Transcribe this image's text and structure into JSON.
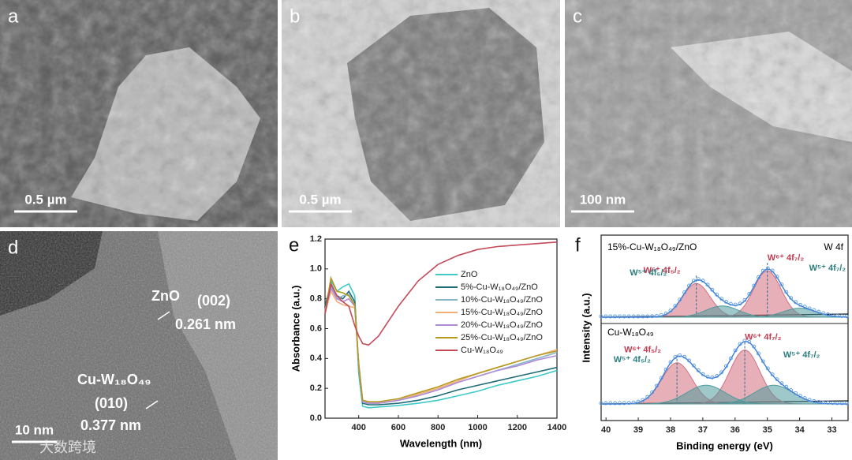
{
  "panels": [
    {
      "label": "a",
      "scale_bar": "0.5 µm"
    },
    {
      "label": "b",
      "scale_bar": "0.5 µm"
    },
    {
      "label": "c",
      "scale_bar": "100 nm"
    },
    {
      "label": "d",
      "scale_bar": "10 nm",
      "annotations": [
        "ZnO",
        "(002)",
        "0.261 nm",
        "Cu-W₁₈O₄₉",
        "(010)",
        "0.377 nm"
      ],
      "watermark": "大数跨境"
    }
  ],
  "chart_data": [
    {
      "type": "line",
      "label": "e",
      "x_label": "Wavelength (nm)",
      "y_label": "Absorbance (a.u.)",
      "x": [
        230,
        260,
        290,
        320,
        350,
        380,
        400,
        420,
        450,
        500,
        600,
        700,
        800,
        900,
        1000,
        1100,
        1200,
        1300,
        1400
      ],
      "xlim": [
        230,
        1400
      ],
      "xticks": [
        400,
        600,
        800,
        1000,
        1200,
        1400
      ],
      "ylim": [
        0,
        1.2
      ],
      "yticks": [
        {
          "value": 0,
          "label": "0.0"
        },
        0.2,
        0.4,
        0.6,
        0.8,
        {
          "value": 1,
          "label": "1.0"
        },
        1.2
      ],
      "series": [
        {
          "name": "ZnO",
          "color": "#3fc9c9",
          "values": [
            0.72,
            0.92,
            0.85,
            0.88,
            0.9,
            0.82,
            0.3,
            0.08,
            0.07,
            0.075,
            0.085,
            0.1,
            0.12,
            0.15,
            0.18,
            0.22,
            0.25,
            0.28,
            0.32
          ]
        },
        {
          "name": "5%-Cu-W₁₈O₄₉/ZnO",
          "color": "#1f6b77",
          "values": [
            0.75,
            0.9,
            0.82,
            0.8,
            0.85,
            0.78,
            0.35,
            0.1,
            0.09,
            0.09,
            0.1,
            0.12,
            0.15,
            0.19,
            0.22,
            0.25,
            0.28,
            0.31,
            0.34
          ]
        },
        {
          "name": "10%-Cu-W₁₈O₄₉/ZnO",
          "color": "#8ab6cc",
          "values": [
            0.7,
            0.88,
            0.8,
            0.82,
            0.83,
            0.76,
            0.35,
            0.11,
            0.1,
            0.1,
            0.12,
            0.15,
            0.19,
            0.24,
            0.28,
            0.32,
            0.36,
            0.4,
            0.44
          ]
        },
        {
          "name": "15%-Cu-W₁₈O₄₉/ZnO",
          "color": "#f0b07a",
          "values": [
            0.7,
            0.85,
            0.78,
            0.76,
            0.75,
            0.74,
            0.36,
            0.12,
            0.1,
            0.1,
            0.12,
            0.16,
            0.2,
            0.25,
            0.3,
            0.34,
            0.38,
            0.42,
            0.46
          ]
        },
        {
          "name": "20%-Cu-W₁₈O₄₉/ZnO",
          "color": "#b08bd6",
          "values": [
            0.72,
            0.87,
            0.8,
            0.78,
            0.8,
            0.75,
            0.36,
            0.11,
            0.1,
            0.1,
            0.12,
            0.15,
            0.19,
            0.24,
            0.28,
            0.32,
            0.35,
            0.39,
            0.42
          ]
        },
        {
          "name": "25%-Cu-W₁₈O₄₉/ZnO",
          "color": "#b59a1f",
          "values": [
            0.7,
            0.94,
            0.85,
            0.84,
            0.82,
            0.76,
            0.37,
            0.12,
            0.11,
            0.11,
            0.13,
            0.17,
            0.21,
            0.26,
            0.3,
            0.34,
            0.38,
            0.42,
            0.45
          ]
        },
        {
          "name": "Cu-W₁₈O₄₉",
          "color": "#c44a5a",
          "values": [
            0.7,
            0.9,
            0.82,
            0.78,
            0.75,
            0.62,
            0.55,
            0.5,
            0.49,
            0.55,
            0.75,
            0.92,
            1.03,
            1.09,
            1.13,
            1.15,
            1.16,
            1.17,
            1.18
          ]
        }
      ]
    },
    {
      "type": "xps",
      "label": "f",
      "x_label": "Binding energy (eV)",
      "y_label": "Intensity (a.u.)",
      "region": "W 4f",
      "xlim": [
        40.15,
        32.5
      ],
      "xticks": [
        40,
        39,
        38,
        37,
        36,
        35,
        34,
        33
      ],
      "spectra": [
        {
          "name": "15%-Cu-W₁₈O₄₉/ZnO",
          "peaks": [
            {
              "name": "W⁶⁺ 4f₅/₂",
              "center": 37.2,
              "height": 45,
              "width": 1.0,
              "color": "#d4707f"
            },
            {
              "name": "W⁶⁺ 4f₇/₂",
              "center": 35.0,
              "height": 62,
              "width": 1.0,
              "color": "#d4707f"
            },
            {
              "name": "W⁵⁺ 4f₅/₂",
              "center": 36.4,
              "height": 15,
              "width": 1.2,
              "color": "#4f9a9c"
            },
            {
              "name": "W⁵⁺ 4f₇/₂",
              "center": 34.0,
              "height": 12,
              "width": 1.2,
              "color": "#4f9a9c"
            }
          ]
        },
        {
          "name": "Cu-W₁₈O₄₉",
          "peaks": [
            {
              "name": "W⁶⁺ 4f₅/₂",
              "center": 37.8,
              "height": 55,
              "width": 1.1,
              "color": "#d4707f"
            },
            {
              "name": "W⁶⁺ 4f₇/₂",
              "center": 35.7,
              "height": 72,
              "width": 1.1,
              "color": "#d4707f"
            },
            {
              "name": "W⁵⁺ 4f₅/₂",
              "center": 36.9,
              "height": 25,
              "width": 1.4,
              "color": "#4f9a9c"
            },
            {
              "name": "W⁵⁺ 4f₇/₂",
              "center": 34.8,
              "height": 25,
              "width": 1.4,
              "color": "#4f9a9c"
            }
          ]
        }
      ]
    }
  ]
}
